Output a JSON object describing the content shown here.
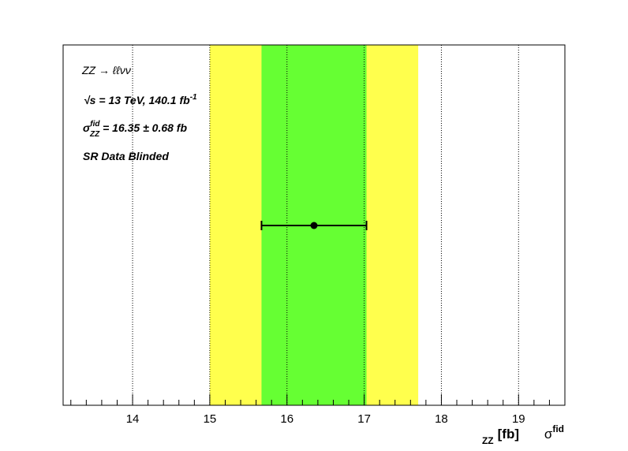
{
  "chart_data": {
    "type": "scatter",
    "xlim": [
      13.1,
      19.6
    ],
    "x_ticks": [
      14,
      15,
      16,
      17,
      18,
      19
    ],
    "grid": "vertical-dotted",
    "point": {
      "x": 16.35,
      "err": 0.68
    },
    "bands": [
      {
        "name": "2sigma",
        "from": 15.0,
        "to": 17.7,
        "color": "#ffff4d"
      },
      {
        "name": "1sigma",
        "from": 15.67,
        "to": 17.03,
        "color": "#66ff33"
      }
    ],
    "xlabel": {
      "symbol": "σ",
      "sup": "fid",
      "sub": "ZZ",
      "unit": "[fb]"
    },
    "annotations": {
      "process": "ZZ → ℓℓνν",
      "energy_root": "√s",
      "energy_rest": " = 13 TeV, 140.1 fb",
      "energy_sup": "-1",
      "xsec_symbol": "σ",
      "xsec_sup": "fid",
      "xsec_sub": "ZZ",
      "xsec_rest": " = 16.35 ± 0.68 fb",
      "region": "SR Data Blinded"
    }
  }
}
